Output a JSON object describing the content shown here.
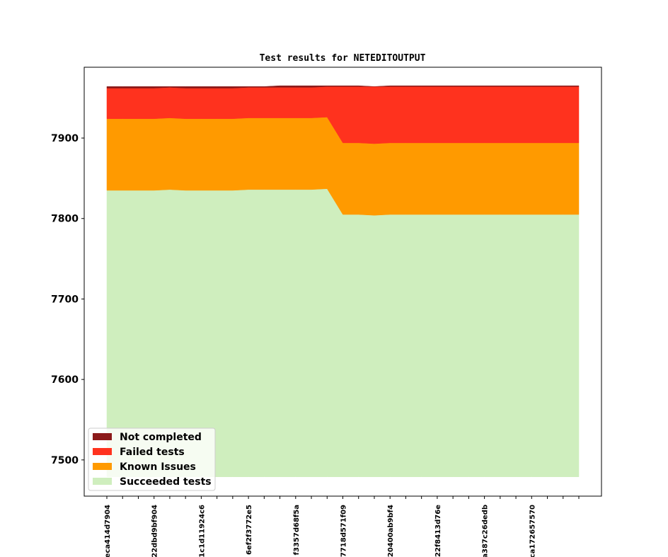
{
  "chart_data": {
    "type": "area",
    "title": "Test results for NETEDITOUTPUT",
    "xlabel": "",
    "ylabel": "",
    "ylim": [
      7455,
      7988
    ],
    "yticks": [
      7500,
      7600,
      7700,
      7800,
      7900
    ],
    "baseline": 7479,
    "x_tick_labels": [
      "eca414d7904",
      "22dbd9bf904",
      "1c1d11924c6",
      "6ef2f3772e5",
      "f3357d68f5a",
      "7718d571f09",
      "20400ab9bf4",
      "22f8413d76e",
      "a387c26dedb",
      "ca172657570"
    ],
    "n_points": 31,
    "legend_position": "lower-left",
    "grid": false,
    "stack_tops": {
      "succeeded": [
        7835,
        7835,
        7835,
        7835,
        7836,
        7835,
        7835,
        7835,
        7835,
        7836,
        7836,
        7836,
        7836,
        7836,
        7837,
        7805,
        7805,
        7804,
        7805,
        7805,
        7805,
        7805,
        7805,
        7805,
        7805,
        7805,
        7805,
        7805,
        7805,
        7805,
        7805
      ],
      "known": [
        7924,
        7924,
        7924,
        7924,
        7925,
        7924,
        7924,
        7924,
        7924,
        7925,
        7925,
        7925,
        7925,
        7925,
        7926,
        7894,
        7894,
        7893,
        7894,
        7894,
        7894,
        7894,
        7894,
        7894,
        7894,
        7894,
        7894,
        7894,
        7894,
        7894,
        7894
      ],
      "failed": [
        7962,
        7962,
        7962,
        7962,
        7963,
        7962,
        7962,
        7962,
        7962,
        7963,
        7963,
        7963,
        7963,
        7963,
        7964,
        7964,
        7964,
        7964,
        7964,
        7964,
        7964,
        7964,
        7964,
        7964,
        7964,
        7964,
        7964,
        7964,
        7964,
        7964,
        7964
      ],
      "not_completed": [
        7964,
        7964,
        7964,
        7964,
        7964,
        7964,
        7964,
        7964,
        7964,
        7964,
        7964,
        7965,
        7965,
        7965,
        7965,
        7965,
        7965,
        7964,
        7965,
        7965,
        7965,
        7965,
        7965,
        7965,
        7965,
        7965,
        7965,
        7965,
        7965,
        7965,
        7965
      ]
    },
    "series": [
      {
        "key": "not_completed",
        "name": "Not completed",
        "color": "#8b1a1a"
      },
      {
        "key": "failed",
        "name": "Failed tests",
        "color": "#ff321e"
      },
      {
        "key": "known",
        "name": "Known Issues",
        "color": "#ff9a00"
      },
      {
        "key": "succeeded",
        "name": "Succeeded tests",
        "color": "#cfeebe"
      }
    ]
  }
}
